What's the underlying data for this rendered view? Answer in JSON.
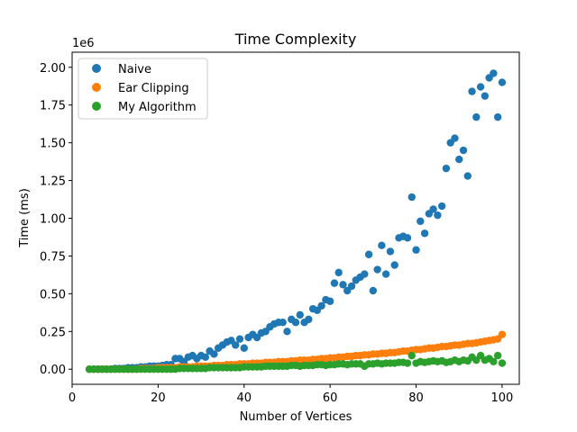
{
  "chart_data": {
    "type": "scatter",
    "title": "Time Complexity",
    "xlabel": "Number of Vertices",
    "ylabel": "Time (ms)",
    "y_offset_label": "1e6",
    "xlim": [
      0,
      104
    ],
    "ylim": [
      -0.1,
      2.1
    ],
    "x_ticks": [
      0,
      20,
      40,
      60,
      80,
      100
    ],
    "x_tick_labels": [
      "0",
      "20",
      "40",
      "60",
      "80",
      "100"
    ],
    "y_ticks": [
      0,
      0.25,
      0.5,
      0.75,
      1.0,
      1.25,
      1.5,
      1.75,
      2.0
    ],
    "y_tick_labels": [
      "0.00",
      "0.25",
      "0.50",
      "0.75",
      "1.00",
      "1.25",
      "1.50",
      "1.75",
      "2.00"
    ],
    "grid": false,
    "legend_position": "top-left",
    "x": [
      4,
      5,
      6,
      7,
      8,
      9,
      10,
      11,
      12,
      13,
      14,
      15,
      16,
      17,
      18,
      19,
      20,
      21,
      22,
      23,
      24,
      25,
      26,
      27,
      28,
      29,
      30,
      31,
      32,
      33,
      34,
      35,
      36,
      37,
      38,
      39,
      40,
      41,
      42,
      43,
      44,
      45,
      46,
      47,
      48,
      49,
      50,
      51,
      52,
      53,
      54,
      55,
      56,
      57,
      58,
      59,
      60,
      61,
      62,
      63,
      64,
      65,
      66,
      67,
      68,
      69,
      70,
      71,
      72,
      73,
      74,
      75,
      76,
      77,
      78,
      79,
      80,
      81,
      82,
      83,
      84,
      85,
      86,
      87,
      88,
      89,
      90,
      91,
      92,
      93,
      94,
      95,
      96,
      97,
      98,
      99,
      100
    ],
    "series": [
      {
        "name": "Naive",
        "color": "#1f77b4",
        "values": [
          0.0,
          0.0,
          0.0,
          0.0,
          0.0,
          0.0,
          0.005,
          0.005,
          0.005,
          0.01,
          0.01,
          0.01,
          0.015,
          0.015,
          0.02,
          0.02,
          0.02,
          0.025,
          0.03,
          0.03,
          0.07,
          0.07,
          0.05,
          0.08,
          0.09,
          0.07,
          0.09,
          0.08,
          0.12,
          0.1,
          0.14,
          0.16,
          0.18,
          0.19,
          0.16,
          0.2,
          0.14,
          0.21,
          0.23,
          0.21,
          0.24,
          0.25,
          0.28,
          0.3,
          0.31,
          0.31,
          0.25,
          0.33,
          0.31,
          0.36,
          0.31,
          0.33,
          0.4,
          0.39,
          0.42,
          0.46,
          0.45,
          0.57,
          0.64,
          0.56,
          0.52,
          0.55,
          0.59,
          0.61,
          0.63,
          0.76,
          0.52,
          0.66,
          0.82,
          0.63,
          0.78,
          0.69,
          0.87,
          0.88,
          0.87,
          1.14,
          0.79,
          0.98,
          0.9,
          1.03,
          1.06,
          1.02,
          1.08,
          1.33,
          1.5,
          1.53,
          1.39,
          1.45,
          1.28,
          1.84,
          1.67,
          1.87,
          1.81,
          1.93,
          1.96,
          1.67,
          1.9
        ]
      },
      {
        "name": "Ear Clipping",
        "color": "#ff7f0e",
        "values": [
          0.0,
          0.0,
          0.0,
          0.0,
          0.0,
          0.0,
          0.0,
          0.0,
          0.0,
          0.0,
          0.0,
          0.0,
          0.005,
          0.005,
          0.005,
          0.005,
          0.01,
          0.01,
          0.01,
          0.01,
          0.01,
          0.015,
          0.015,
          0.015,
          0.015,
          0.02,
          0.02,
          0.02,
          0.02,
          0.025,
          0.025,
          0.025,
          0.03,
          0.03,
          0.03,
          0.035,
          0.035,
          0.035,
          0.04,
          0.04,
          0.04,
          0.045,
          0.045,
          0.045,
          0.05,
          0.05,
          0.05,
          0.055,
          0.055,
          0.06,
          0.06,
          0.06,
          0.065,
          0.065,
          0.07,
          0.07,
          0.075,
          0.075,
          0.08,
          0.08,
          0.085,
          0.085,
          0.09,
          0.09,
          0.095,
          0.095,
          0.1,
          0.1,
          0.105,
          0.105,
          0.11,
          0.11,
          0.115,
          0.12,
          0.12,
          0.125,
          0.13,
          0.13,
          0.135,
          0.14,
          0.14,
          0.145,
          0.15,
          0.15,
          0.155,
          0.16,
          0.16,
          0.165,
          0.17,
          0.17,
          0.175,
          0.18,
          0.185,
          0.19,
          0.195,
          0.2,
          0.23
        ]
      },
      {
        "name": "My Algorithm",
        "color": "#2ca02c",
        "values": [
          0.0,
          0.0,
          0.0,
          0.0,
          0.0,
          0.0,
          0.0,
          0.0,
          0.0,
          0.0,
          0.0,
          0.0,
          0.0,
          0.0,
          0.0,
          0.0,
          0.0,
          0.0,
          0.0,
          0.0,
          0.0,
          0.005,
          0.005,
          0.005,
          0.005,
          0.005,
          0.005,
          0.005,
          0.01,
          0.01,
          0.01,
          0.01,
          0.01,
          0.01,
          0.01,
          0.01,
          0.015,
          0.015,
          0.015,
          0.015,
          0.015,
          0.02,
          0.02,
          0.02,
          0.02,
          0.02,
          0.02,
          0.025,
          0.025,
          0.02,
          0.025,
          0.025,
          0.025,
          0.03,
          0.03,
          0.025,
          0.03,
          0.03,
          0.035,
          0.035,
          0.03,
          0.035,
          0.035,
          0.035,
          0.02,
          0.035,
          0.035,
          0.04,
          0.035,
          0.04,
          0.04,
          0.04,
          0.045,
          0.045,
          0.04,
          0.09,
          0.04,
          0.05,
          0.045,
          0.05,
          0.055,
          0.05,
          0.055,
          0.045,
          0.05,
          0.06,
          0.05,
          0.06,
          0.055,
          0.08,
          0.06,
          0.09,
          0.06,
          0.07,
          0.05,
          0.09,
          0.04
        ]
      }
    ]
  }
}
